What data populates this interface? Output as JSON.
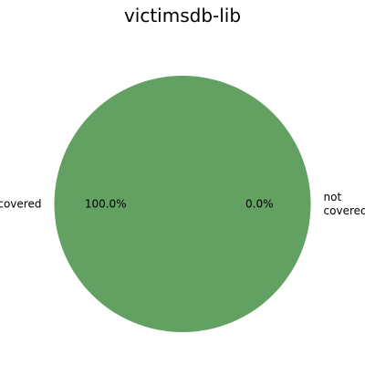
{
  "chart_data": {
    "type": "pie",
    "title": "victimsdb-lib",
    "slices": [
      {
        "label": "covered",
        "value": 100.0,
        "pct_label": "100.0%",
        "color": "#62a162"
      },
      {
        "label": "not covered",
        "value": 0.0,
        "pct_label": "0.0%",
        "color": "#d9534f"
      }
    ],
    "legend": "none"
  }
}
